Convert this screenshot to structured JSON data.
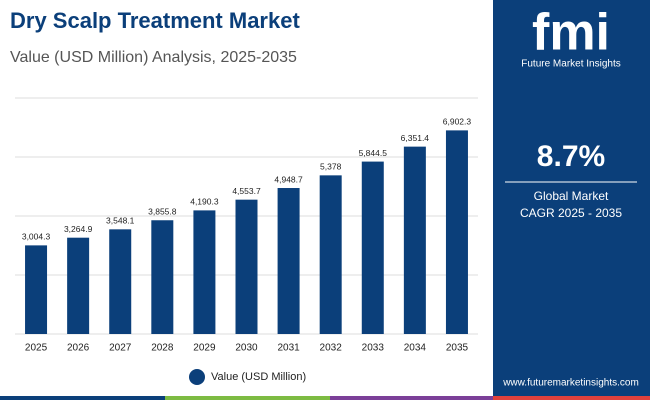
{
  "chart_data": {
    "type": "bar",
    "title": "Dry Scalp Treatment Market",
    "subtitle": "Value (USD Million) Analysis, 2025-2035",
    "categories": [
      "2025",
      "2026",
      "2027",
      "2028",
      "2029",
      "2030",
      "2031",
      "2032",
      "2033",
      "2034",
      "2035"
    ],
    "series": [
      {
        "name": "Value (USD Million)",
        "color": "#0b3f7a",
        "values": [
          3004.3,
          3264.9,
          3548.1,
          3855.8,
          4190.3,
          4553.7,
          4948.7,
          5378,
          5844.5,
          6351.4,
          6902.3
        ],
        "value_labels": [
          "3,004.3",
          "3,264.9",
          "3,548.1",
          "3,855.8",
          "4,190.3",
          "4,553.7",
          "4,948.7",
          "5,378",
          "5,844.5",
          "6,351.4",
          "6,902.3"
        ]
      }
    ],
    "ylim": [
      0,
      8000
    ],
    "yticks": [
      0,
      2000,
      4000,
      6000,
      8000
    ],
    "grid": true
  },
  "sidebar": {
    "logo": "fmi",
    "brand": "Future Market Insights",
    "cagr": "8.7%",
    "cagr_label_1": "Global Market",
    "cagr_label_2": "CAGR 2025 - 2035",
    "website": "www.futuremarketinsights.com"
  }
}
